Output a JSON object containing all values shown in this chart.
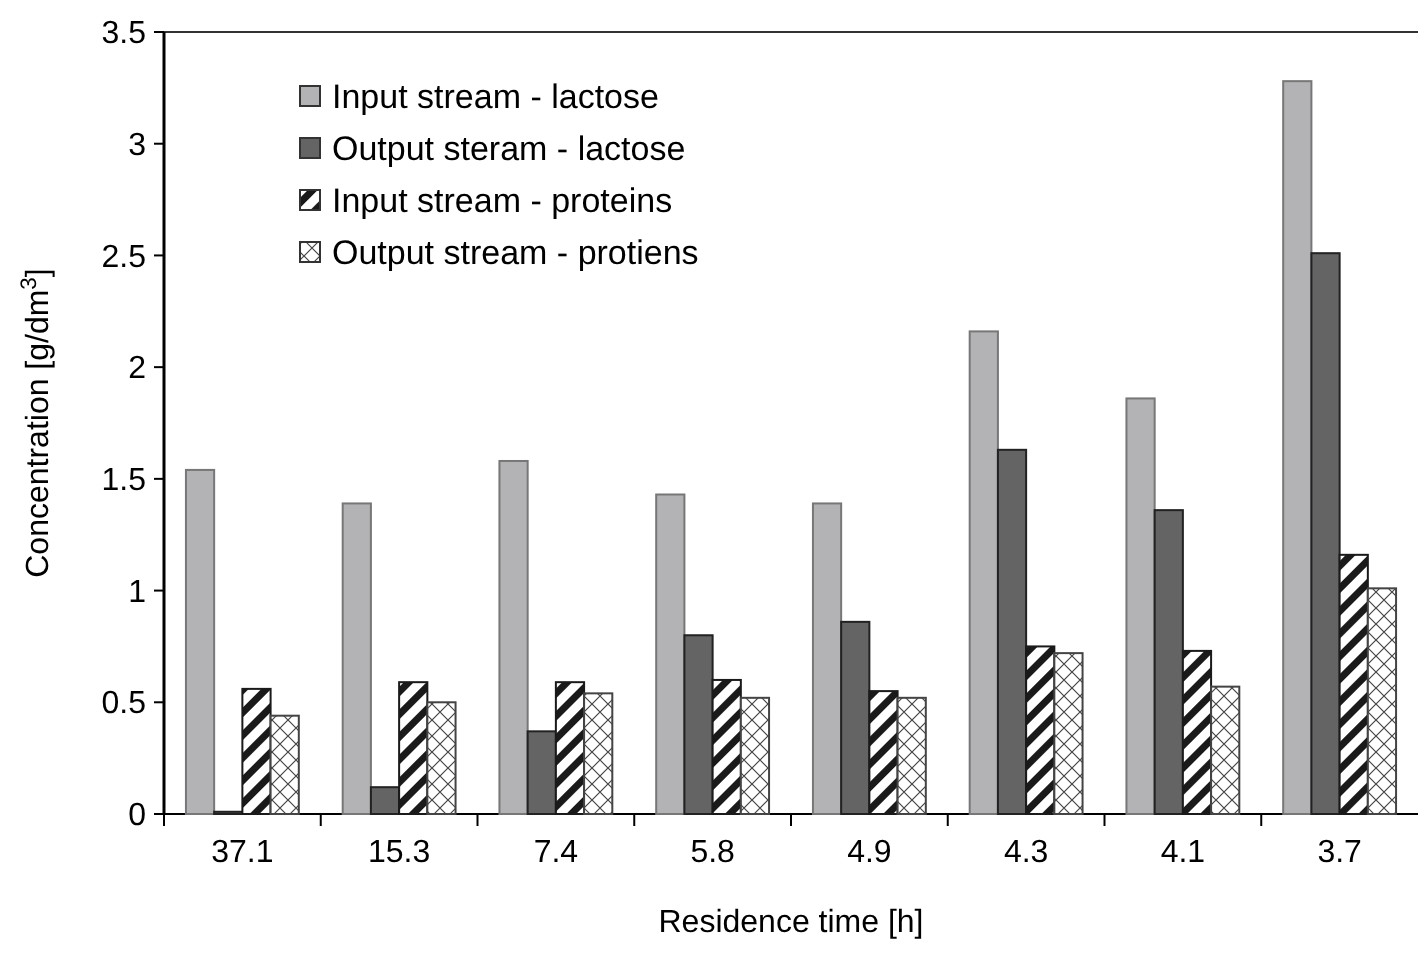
{
  "chart_data": {
    "type": "bar",
    "categories": [
      "37.1",
      "15.3",
      "7.4",
      "5.8",
      "4.9",
      "4.3",
      "4.1",
      "3.7"
    ],
    "series": [
      {
        "name": "Input stream - lactose",
        "color": "#b3b3b5",
        "values": [
          1.54,
          1.39,
          1.58,
          1.43,
          1.39,
          2.16,
          1.86,
          3.28
        ]
      },
      {
        "name": "Output steram - lactose",
        "color": "#646464",
        "values": [
          0.01,
          0.12,
          0.37,
          0.8,
          0.86,
          1.63,
          1.36,
          2.51
        ]
      },
      {
        "name": "Input stream - proteins",
        "color": "#1a1a1a",
        "values": [
          0.56,
          0.59,
          0.59,
          0.6,
          0.55,
          0.75,
          0.73,
          1.16
        ]
      },
      {
        "name": "Output stream - protiens",
        "color": "#444444",
        "values": [
          0.44,
          0.5,
          0.54,
          0.52,
          0.52,
          0.72,
          0.57,
          1.01
        ]
      }
    ],
    "xlabel": "Residence time [h]",
    "ylabel": "Concentration [g/dm$^{3}$]",
    "ylim": [
      0,
      3.5
    ],
    "yticks": [
      0,
      0.5,
      1,
      1.5,
      2,
      2.5,
      3,
      3.5
    ],
    "grid": false,
    "legend": "top left"
  }
}
